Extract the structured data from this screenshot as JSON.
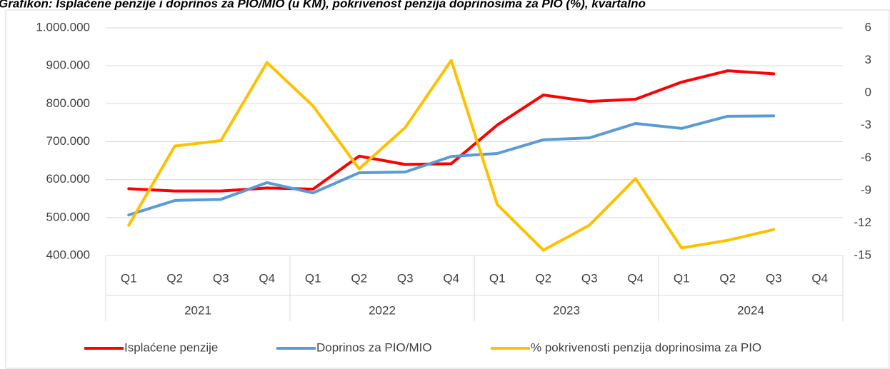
{
  "chart_data": {
    "type": "line",
    "title": "Grafikon: Isplaćene penzije i doprinos za PIO/MIO (u KM), pokrivenost penzija doprinosima za PIO (%), kvartalno",
    "categories": [
      "Q1",
      "Q2",
      "Q3",
      "Q4",
      "Q1",
      "Q2",
      "Q3",
      "Q4",
      "Q1",
      "Q2",
      "Q3",
      "Q4",
      "Q1",
      "Q2",
      "Q3",
      "Q4"
    ],
    "groups": [
      "2021",
      "2022",
      "2023",
      "2024"
    ],
    "series": [
      {
        "name": "Isplaćene penzije",
        "color": "#ff0000",
        "axis": "y",
        "values": [
          576000,
          570000,
          570000,
          578000,
          575000,
          662000,
          640000,
          642000,
          744000,
          823000,
          806000,
          812000,
          857000,
          887000,
          879000,
          null
        ]
      },
      {
        "name": "Doprinos za PIO/MIO",
        "color": "#5b9bd5",
        "axis": "y",
        "values": [
          507000,
          545000,
          548000,
          592000,
          565000,
          618000,
          620000,
          661000,
          669000,
          705000,
          710000,
          748000,
          735000,
          767000,
          768000,
          null
        ]
      },
      {
        "name": "% pokrivenosti penzija doprinosima za PIO",
        "color": "#ffc000",
        "axis": "y2",
        "values": [
          -12.2,
          -4.9,
          -4.4,
          2.8,
          -1.2,
          -7.0,
          -3.2,
          3.0,
          -10.3,
          -14.5,
          -12.2,
          -7.9,
          -14.3,
          -13.6,
          -12.6,
          null
        ]
      }
    ],
    "ylim": [
      400000,
      1000000
    ],
    "yticks": [
      {
        "value": 400000,
        "label": "400.000"
      },
      {
        "value": 500000,
        "label": "500.000"
      },
      {
        "value": 600000,
        "label": "600.000"
      },
      {
        "value": 700000,
        "label": "700.000"
      },
      {
        "value": 800000,
        "label": "800.000"
      },
      {
        "value": 900000,
        "label": "900.000"
      },
      {
        "value": 1000000,
        "label": "1.000.000"
      }
    ],
    "y2lim": [
      -15,
      6
    ],
    "y2ticks": [
      -15,
      -12,
      -9,
      -6,
      -3,
      0,
      3,
      6
    ],
    "grid": true,
    "legend": "bottom"
  }
}
